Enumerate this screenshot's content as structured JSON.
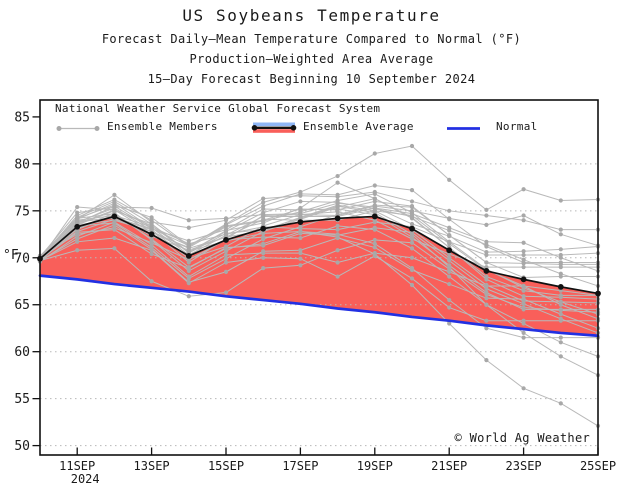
{
  "title": {
    "line1": "US Soybeans Temperature",
    "line2": "Forecast Daily–Mean Temperature Compared to Normal (°F)",
    "line3": "Production–Weighted Area Average",
    "line4": "15–Day Forecast Beginning 10 September 2024"
  },
  "legend": {
    "source": "National Weather Service Global Forecast System",
    "ensemble_members_label": "Ensemble Members",
    "ensemble_average_label": "Ensemble Average",
    "normal_label": "Normal"
  },
  "axis": {
    "y_unit": "°F",
    "year_label": "2024"
  },
  "footer": {
    "copyright": "© World Ag Weather"
  },
  "colors": {
    "fill_above_normal": "#F95F5A",
    "normal_line": "#2230E2",
    "member_line": "#b9b9b9",
    "member_dot": "#a8a8a8",
    "average_line": "#111111",
    "grid": "#b8b8b8",
    "axis": "#111111",
    "legend_blue_stripe": "#8FB6F5",
    "text": "#1a1a1a"
  },
  "chart_data": {
    "type": "line",
    "title": "US Soybeans Temperature",
    "subtitle": [
      "Forecast Daily–Mean Temperature Compared to Normal (°F)",
      "Production–Weighted Area Average",
      "15–Day Forecast Beginning 10 September 2024"
    ],
    "xlabel": "",
    "ylabel": "°F",
    "grid": "dotted horizontal lines every 5°F from 50 to 80",
    "legend_position": "top-left inside plot",
    "categories": [
      "10SEP",
      "11SEP",
      "12SEP",
      "13SEP",
      "14SEP",
      "15SEP",
      "16SEP",
      "17SEP",
      "18SEP",
      "19SEP",
      "20SEP",
      "21SEP",
      "22SEP",
      "23SEP",
      "24SEP",
      "25SEP"
    ],
    "x_tick_labels": [
      "11SEP",
      "13SEP",
      "15SEP",
      "17SEP",
      "19SEP",
      "21SEP",
      "23SEP",
      "25SEP"
    ],
    "x_tick_indices": [
      1,
      3,
      5,
      7,
      9,
      11,
      13,
      15
    ],
    "y_ticks": [
      50,
      55,
      60,
      65,
      70,
      75,
      80,
      85
    ],
    "ylim": [
      49.0,
      86.8
    ],
    "shading": "red fill between Ensemble Average and Normal where average is above normal",
    "series": [
      {
        "name": "Ensemble Average",
        "values": [
          69.9,
          73.3,
          74.4,
          72.5,
          70.2,
          71.9,
          73.1,
          73.8,
          74.2,
          74.4,
          73.1,
          70.8,
          68.6,
          67.7,
          66.9,
          66.2
        ]
      },
      {
        "name": "Normal",
        "values": [
          68.1,
          67.7,
          67.2,
          66.8,
          66.4,
          65.9,
          65.5,
          65.1,
          64.6,
          64.2,
          63.7,
          63.3,
          62.8,
          62.4,
          62.0,
          61.7
        ]
      }
    ],
    "ensemble_members": [
      [
        69.9,
        74.5,
        76.2,
        74.0,
        71.2,
        73.6,
        75.9,
        77.0,
        78.7,
        81.1,
        81.9,
        78.3,
        75.1,
        77.3,
        76.1,
        76.2
      ],
      [
        70.0,
        72.8,
        74.1,
        72.8,
        70.7,
        71.8,
        72.6,
        72.8,
        72.2,
        70.4,
        67.1,
        63.0,
        59.1,
        56.1,
        54.5,
        52.1
      ],
      [
        69.7,
        70.8,
        71.0,
        67.5,
        65.9,
        66.3,
        68.9,
        69.2,
        70.8,
        71.9,
        71.6,
        68.8,
        66.1,
        64.7,
        64.4,
        64.2
      ],
      [
        70.1,
        74.8,
        75.4,
        75.3,
        74.0,
        74.2,
        74.6,
        74.7,
        75.8,
        75.4,
        73.6,
        72.3,
        70.6,
        70.7,
        70.9,
        71.2
      ],
      [
        70.0,
        74.1,
        76.7,
        73.8,
        73.2,
        74.0,
        76.3,
        76.6,
        76.5,
        77.0,
        76.0,
        75.0,
        74.5,
        74.0,
        73.0,
        73.0
      ],
      [
        69.8,
        75.4,
        75.1,
        73.4,
        70.6,
        72.9,
        73.7,
        75.3,
        78.0,
        76.3,
        74.3,
        71.1,
        68.0,
        66.5,
        66.0,
        66.0
      ],
      [
        69.9,
        73.8,
        75.3,
        72.9,
        69.5,
        72.0,
        74.5,
        74.6,
        74.5,
        75.5,
        75.0,
        74.2,
        73.5,
        74.5,
        72.5,
        71.3
      ],
      [
        69.6,
        72.3,
        73.8,
        71.4,
        68.0,
        70.3,
        70.5,
        70.5,
        69.5,
        70.5,
        70.0,
        68.5,
        67.0,
        67.0,
        65.0,
        63.5
      ],
      [
        70.1,
        74.2,
        74.7,
        72.0,
        69.0,
        71.0,
        71.5,
        72.8,
        72.5,
        71.5,
        68.9,
        65.5,
        62.5,
        61.5,
        61.5,
        61.5
      ],
      [
        69.7,
        73.5,
        75.0,
        73.6,
        70.5,
        72.6,
        73.0,
        74.2,
        75.5,
        74.8,
        72.5,
        69.0,
        65.0,
        62.0,
        59.5,
        57.5
      ],
      [
        70.0,
        73.0,
        74.6,
        72.3,
        70.8,
        72.2,
        74.1,
        74.0,
        74.0,
        75.0,
        74.5,
        71.5,
        68.7,
        67.0,
        66.5,
        66.0
      ],
      [
        69.8,
        73.9,
        74.2,
        73.0,
        69.9,
        71.2,
        73.4,
        74.6,
        74.9,
        74.0,
        72.0,
        70.4,
        69.0,
        69.0,
        69.0,
        69.0
      ],
      [
        70.2,
        72.5,
        73.2,
        71.6,
        69.8,
        71.9,
        72.2,
        72.1,
        73.4,
        73.0,
        71.0,
        68.0,
        65.0,
        63.0,
        61.0,
        59.5
      ],
      [
        69.9,
        73.7,
        75.5,
        73.1,
        71.8,
        73.0,
        75.2,
        75.1,
        75.2,
        74.6,
        72.2,
        69.2,
        66.3,
        64.5,
        64.5,
        64.5
      ],
      [
        69.6,
        73.4,
        73.7,
        71.1,
        67.8,
        69.9,
        72.0,
        73.3,
        74.6,
        75.6,
        75.4,
        72.4,
        69.5,
        67.9,
        68.0,
        68.0
      ],
      [
        70.1,
        74.0,
        74.5,
        73.3,
        71.5,
        72.5,
        73.3,
        73.1,
        73.0,
        73.8,
        73.3,
        71.7,
        70.3,
        70.3,
        70.3,
        70.5
      ],
      [
        69.7,
        72.0,
        73.5,
        70.9,
        67.4,
        68.5,
        70.7,
        70.8,
        72.1,
        71.1,
        68.7,
        67.2,
        65.7,
        65.6,
        64.0,
        62.5
      ],
      [
        70.0,
        73.6,
        75.1,
        72.7,
        71.1,
        73.3,
        73.9,
        74.9,
        76.1,
        76.8,
        74.8,
        71.7,
        68.8,
        66.8,
        65.3,
        64.0
      ],
      [
        69.8,
        72.7,
        73.0,
        70.4,
        68.9,
        71.1,
        71.3,
        72.6,
        72.4,
        73.2,
        72.7,
        69.7,
        66.7,
        65.1,
        63.5,
        62.0
      ],
      [
        70.1,
        74.3,
        76.0,
        73.6,
        70.6,
        72.8,
        74.8,
        76.0,
        75.9,
        75.2,
        74.4,
        72.9,
        71.4,
        69.8,
        68.3,
        67.0
      ],
      [
        69.9,
        73.1,
        74.8,
        71.9,
        68.6,
        70.7,
        72.8,
        74.1,
        75.4,
        76.3,
        74.2,
        71.1,
        67.7,
        65.9,
        65.8,
        65.6
      ],
      [
        70.0,
        73.8,
        74.3,
        73.1,
        71.3,
        73.5,
        75.5,
        76.8,
        76.7,
        77.7,
        77.2,
        74.1,
        71.2,
        69.5,
        69.5,
        69.5
      ],
      [
        69.7,
        71.7,
        72.1,
        70.8,
        67.3,
        69.5,
        70.0,
        69.9,
        68.0,
        70.2,
        67.8,
        64.7,
        63.3,
        63.3,
        63.3,
        63.3
      ],
      [
        70.2,
        74.1,
        75.8,
        73.2,
        70.3,
        72.4,
        74.4,
        74.4,
        74.4,
        75.3,
        74.7,
        73.2,
        71.7,
        71.6,
        70.0,
        68.6
      ],
      [
        69.9,
        73.5,
        74.0,
        72.8,
        71.0,
        72.2,
        72.9,
        74.3,
        75.6,
        75.0,
        73.0,
        70.0,
        67.1,
        65.4,
        65.3,
        65.2
      ],
      [
        69.8,
        74.2,
        75.6,
        74.3,
        71.3,
        73.4,
        74.0,
        75.2,
        75.1,
        76.0,
        75.5,
        72.4,
        69.5,
        69.4,
        69.3,
        69.3
      ]
    ]
  }
}
